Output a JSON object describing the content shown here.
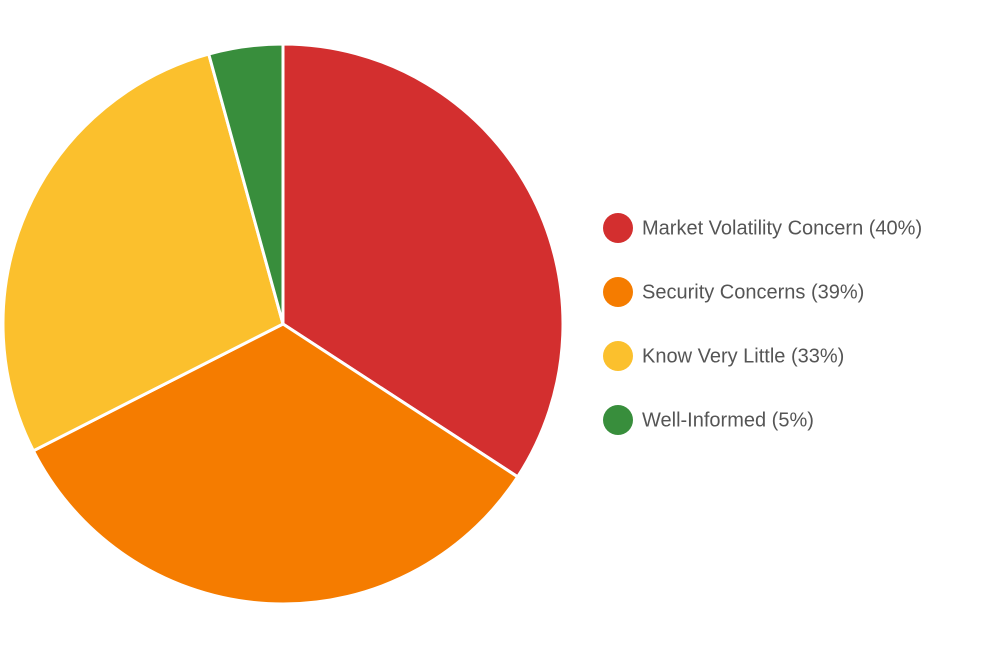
{
  "chart_data": {
    "type": "pie",
    "categories": [
      "Market Volatility Concern (40%)",
      "Security Concerns (39%)",
      "Know Very Little (33%)",
      "Well-Informed (5%)"
    ],
    "values": [
      40,
      39,
      33,
      5
    ],
    "colors": [
      "#d32f2f",
      "#f57c00",
      "#fbc02d",
      "#388e3c"
    ],
    "legend": "right"
  }
}
